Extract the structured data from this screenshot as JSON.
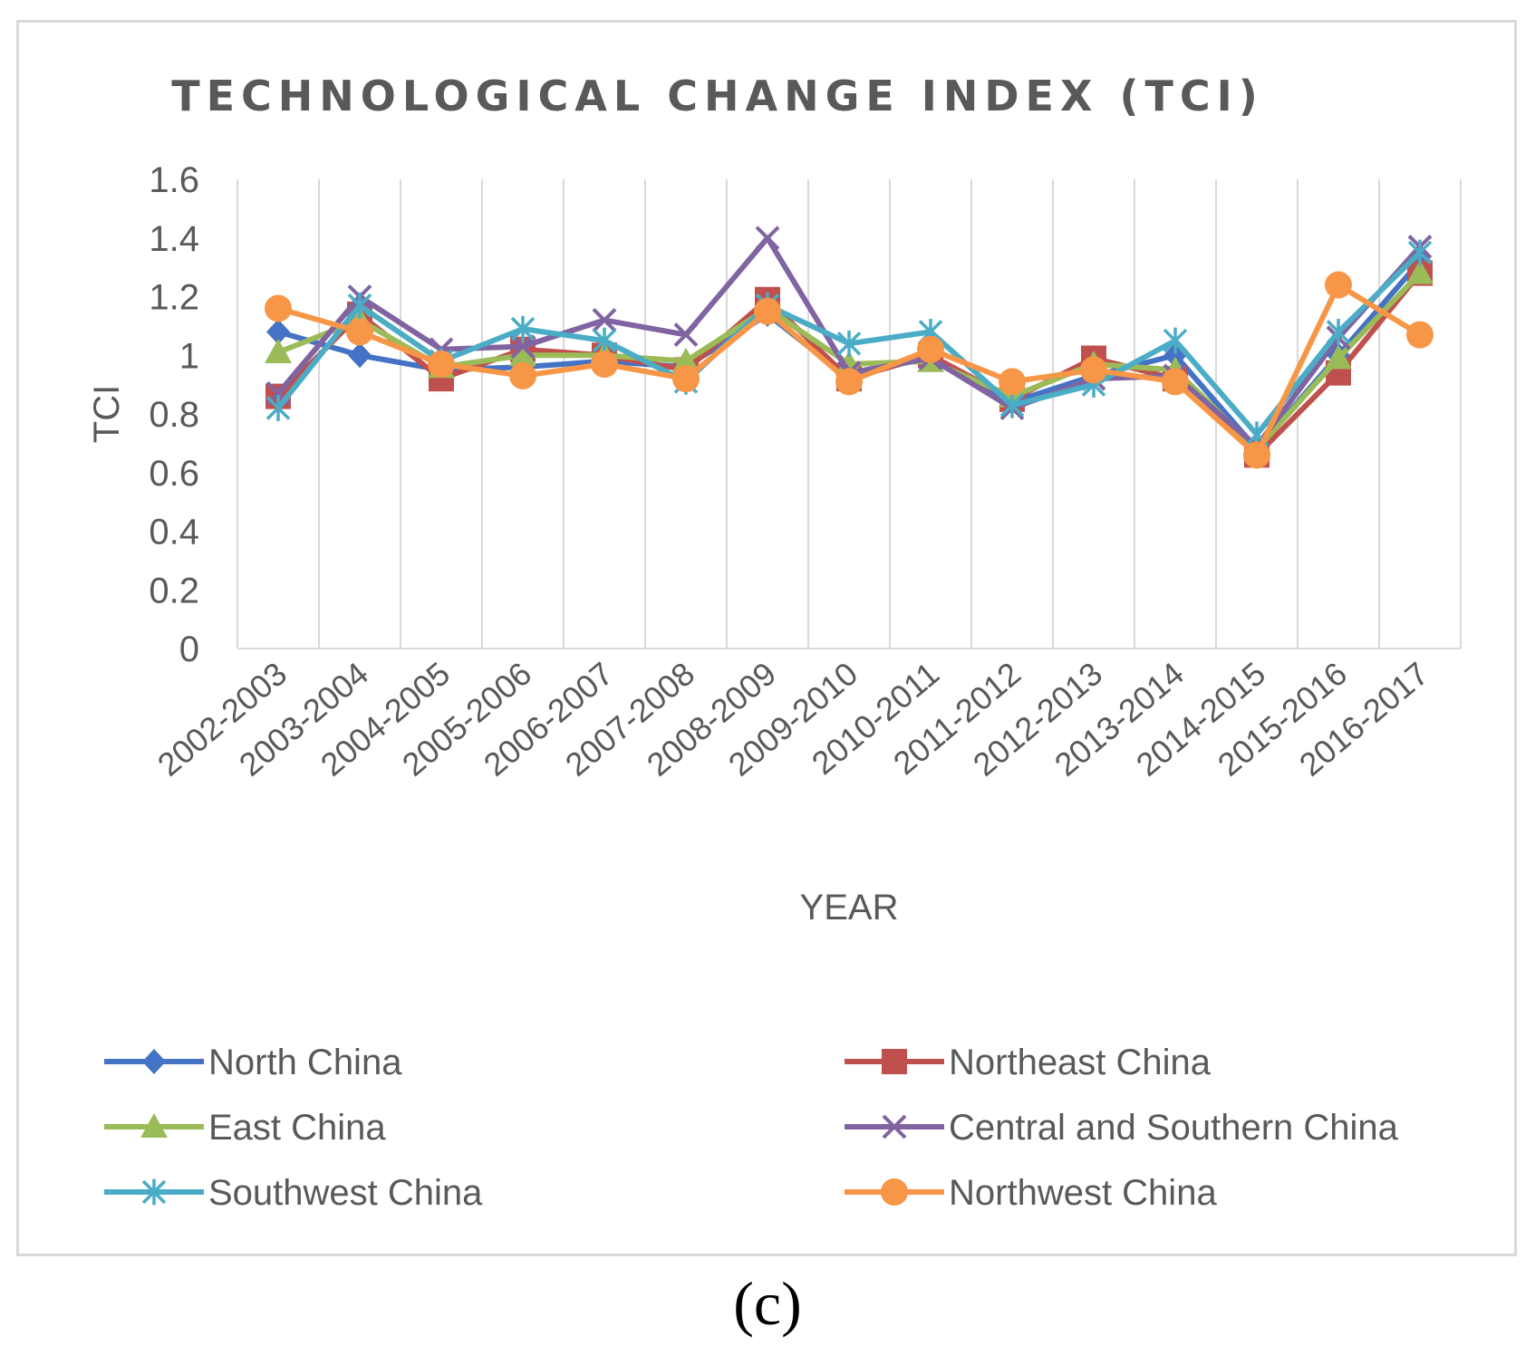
{
  "chart_data": {
    "type": "line",
    "title": "TECHNOLOGICAL CHANGE INDEX (TCI)",
    "xlabel": "YEAR",
    "ylabel": "TCI",
    "ylim": [
      0,
      1.6
    ],
    "yticks": [
      0,
      0.2,
      0.4,
      0.6,
      0.8,
      1,
      1.2,
      1.4,
      1.6
    ],
    "grid": "vertical",
    "legend_position": "bottom",
    "categories": [
      "2002-2003",
      "2003-2004",
      "2004-2005",
      "2005-2006",
      "2006-2007",
      "2007-2008",
      "2008-2009",
      "2009-2010",
      "2010-2011",
      "2011-2012",
      "2012-2013",
      "2013-2014",
      "2014-2015",
      "2015-2016",
      "2016-2017"
    ],
    "series": [
      {
        "name": "North China",
        "color": "#4472C4",
        "marker": "diamond",
        "values": [
          1.08,
          1.0,
          0.95,
          0.96,
          0.98,
          0.96,
          1.14,
          0.92,
          1.0,
          0.84,
          0.93,
          1.0,
          0.68,
          1.0,
          1.32
        ]
      },
      {
        "name": "Northeast China",
        "color": "#C0504D",
        "marker": "square",
        "values": [
          0.86,
          1.14,
          0.92,
          1.02,
          1.0,
          0.95,
          1.19,
          0.92,
          1.0,
          0.85,
          0.99,
          0.92,
          0.66,
          0.94,
          1.28
        ]
      },
      {
        "name": "East China",
        "color": "#9BBB59",
        "marker": "triangle",
        "values": [
          1.01,
          1.12,
          0.96,
          1.0,
          1.0,
          0.98,
          1.16,
          0.97,
          0.98,
          0.86,
          0.97,
          0.95,
          0.68,
          0.99,
          1.28
        ]
      },
      {
        "name": "Central and Southern China",
        "color": "#8064A2",
        "marker": "x",
        "values": [
          0.87,
          1.2,
          1.02,
          1.03,
          1.12,
          1.07,
          1.4,
          0.94,
          0.99,
          0.82,
          0.92,
          0.93,
          0.69,
          1.06,
          1.37
        ]
      },
      {
        "name": "Southwest China",
        "color": "#4BACC6",
        "marker": "asterisk",
        "values": [
          0.82,
          1.17,
          0.98,
          1.09,
          1.05,
          0.91,
          1.17,
          1.04,
          1.08,
          0.83,
          0.9,
          1.05,
          0.73,
          1.08,
          1.35
        ]
      },
      {
        "name": "Northwest China",
        "color": "#F79646",
        "marker": "circle",
        "values": [
          1.16,
          1.08,
          0.97,
          0.93,
          0.97,
          0.92,
          1.15,
          0.91,
          1.02,
          0.91,
          0.95,
          0.91,
          0.66,
          1.24,
          1.07
        ]
      }
    ]
  },
  "caption": "(c)"
}
